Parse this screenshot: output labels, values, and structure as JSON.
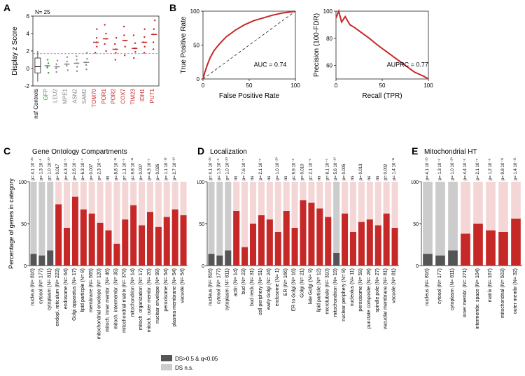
{
  "panelA": {
    "label": "A",
    "n_label": "N= 25",
    "y_label": "Display z Score",
    "y_lim": [
      -2,
      6
    ],
    "y_ticks": [
      -2,
      0,
      2,
      4,
      6
    ],
    "boxplot": {
      "x": 0,
      "q1": -0.5,
      "median": 0.2,
      "q3": 1.2,
      "whisker_low": -1.5,
      "whisker_high": 2.0
    },
    "series": [
      {
        "label": "nsf Controls",
        "color": "#000000",
        "type": "box"
      },
      {
        "label": "GFP",
        "color": "#3a9b3a",
        "median": 0.3,
        "points": [
          -0.5,
          0.1,
          0.3,
          0.6,
          1.0
        ]
      },
      {
        "label": "LEU2",
        "color": "#888888",
        "median": 0.2,
        "points": [
          -0.4,
          0.0,
          0.2,
          0.5,
          0.9
        ]
      },
      {
        "label": "MPE1",
        "color": "#888888",
        "median": 0.5,
        "points": [
          -0.2,
          0.3,
          0.5,
          0.8,
          1.3
        ]
      },
      {
        "label": "ASN2",
        "color": "#888888",
        "median": 0.6,
        "points": [
          -0.3,
          0.2,
          0.6,
          1.0,
          1.4
        ]
      },
      {
        "label": "SAM2",
        "color": "#888888",
        "median": 0.7,
        "points": [
          -0.1,
          0.4,
          0.7,
          1.1,
          1.8
        ]
      },
      {
        "label": "TOM70",
        "color": "#c62828",
        "median": 3.0,
        "points": [
          1.8,
          2.5,
          3.0,
          3.5,
          4.5
        ]
      },
      {
        "label": "POR1",
        "color": "#c62828",
        "median": 3.4,
        "points": [
          2.0,
          2.8,
          3.4,
          4.0,
          5.0
        ]
      },
      {
        "label": "POR2",
        "color": "#c62828",
        "median": 2.2,
        "points": [
          1.0,
          1.8,
          2.2,
          2.8,
          3.5
        ]
      },
      {
        "label": "COX7",
        "color": "#c62828",
        "median": 3.2,
        "points": [
          1.5,
          2.5,
          3.2,
          3.8,
          4.8
        ]
      },
      {
        "label": "TIM23",
        "color": "#c62828",
        "median": 2.3,
        "points": [
          1.2,
          1.9,
          2.3,
          2.9,
          3.8
        ]
      },
      {
        "label": "IDH1",
        "color": "#c62828",
        "median": 3.0,
        "points": [
          1.8,
          2.5,
          3.0,
          3.6,
          4.5
        ]
      },
      {
        "label": "PUT1",
        "color": "#c62828",
        "median": 3.9,
        "points": [
          2.2,
          3.0,
          3.9,
          4.5,
          5.5
        ]
      }
    ],
    "ref_line": 1.7
  },
  "panelB": {
    "label": "B",
    "roc": {
      "x_label": "False Positive Rate",
      "y_label": "True Positive Rate",
      "auc_text": "AUC = 0.74",
      "curve": [
        [
          0,
          0
        ],
        [
          2,
          10
        ],
        [
          5,
          22
        ],
        [
          8,
          32
        ],
        [
          12,
          42
        ],
        [
          18,
          52
        ],
        [
          25,
          62
        ],
        [
          35,
          72
        ],
        [
          45,
          80
        ],
        [
          55,
          86
        ],
        [
          65,
          90
        ],
        [
          75,
          94
        ],
        [
          85,
          97
        ],
        [
          95,
          99
        ],
        [
          100,
          100
        ]
      ],
      "color": "#c62828",
      "ticks": [
        0,
        50,
        100
      ]
    },
    "prc": {
      "x_label": "Recall (TPR)",
      "y_label": "Precision (100-FDR)",
      "auprc_text": "AUPRC = 0.77",
      "curve": [
        [
          0,
          95
        ],
        [
          3,
          100
        ],
        [
          6,
          92
        ],
        [
          10,
          96
        ],
        [
          15,
          90
        ],
        [
          20,
          88
        ],
        [
          28,
          84
        ],
        [
          36,
          80
        ],
        [
          45,
          75
        ],
        [
          55,
          70
        ],
        [
          65,
          65
        ],
        [
          75,
          60
        ],
        [
          85,
          55
        ],
        [
          95,
          52
        ],
        [
          100,
          50
        ]
      ],
      "color": "#c62828",
      "x_ticks": [
        0,
        50,
        100
      ],
      "y_ticks": [
        60,
        80,
        100
      ]
    }
  },
  "barCommon": {
    "y_label": "Percentage of genes in category",
    "y_ticks": [
      0,
      50,
      100
    ],
    "bar_color_sig": "#c62828",
    "bar_color_sig_top": "#f5d6d6",
    "bar_color_ns": "#555555",
    "bar_color_ns_top": "#cccccc",
    "legend": [
      {
        "label": "DS>0.5 & q<0.05",
        "color": "#555555"
      },
      {
        "label": "DS n.s.",
        "color": "#cccccc"
      }
    ]
  },
  "panelC": {
    "label": "C",
    "title": "Gene Ontology Compartments",
    "bars": [
      {
        "name": "nucleus (N= 816)",
        "val": 14,
        "pval": "p= 4.1 10⁻²⁵",
        "sig": false
      },
      {
        "name": "cytosol (N= 177)",
        "val": 12,
        "pval": "p= 1.3 10⁻⁸",
        "sig": false
      },
      {
        "name": "cytoplasm (N= 811)",
        "val": 18,
        "pval": "p= 1.0 10⁻²⁰",
        "sig": false
      },
      {
        "name": "endopl. reticulum (N= 223)",
        "val": 73,
        "pval": "p= 0.017",
        "sig": true
      },
      {
        "name": "endosome (N= 64)",
        "val": 45,
        "pval": "p= 4.3 10⁻⁵",
        "sig": true
      },
      {
        "name": "Golgi apparatus (N= 17)",
        "val": 82,
        "pval": "p= 2.6 10⁻⁷",
        "sig": true
      },
      {
        "name": "lipid particple (N= 8)",
        "val": 67,
        "pval": "p= 6.3 10⁻⁴",
        "sig": true
      },
      {
        "name": "membrane (N= 565)",
        "val": 62,
        "pval": "p= 0.007",
        "sig": true
      },
      {
        "name": "mitochondrial envelope (N= 120)",
        "val": 51,
        "pval": "p= 2.3 10⁻⁶",
        "sig": true
      },
      {
        "name": "mitoch. inner membr. (N= 46)",
        "val": 42,
        "pval": "ns",
        "sig": true
      },
      {
        "name": "mitoch. intermembr. (N= 35)",
        "val": 26,
        "pval": "p= 8.8 10⁻¹¹",
        "sig": true
      },
      {
        "name": "mitochondrial matrix (N= 379)",
        "val": 55,
        "pval": "p= 1.1 10⁻⁹",
        "sig": true
      },
      {
        "name": "mitochondrion (N= 14)",
        "val": 72,
        "pval": "p= 9.8 10⁻¹¹",
        "sig": true
      },
      {
        "name": "mitoch. organization (N= 17)",
        "val": 48,
        "pval": "p= 0.007",
        "sig": true
      },
      {
        "name": "mitoch. outer membr. (N= 20)",
        "val": 64,
        "pval": "p= 4.3 10⁻⁵",
        "sig": true
      },
      {
        "name": "nuclear envelope (N= 99)",
        "val": 46,
        "pval": "p= 0.026",
        "sig": true
      },
      {
        "name": "peroxisome (N= 54)",
        "val": 58,
        "pval": "p= 1.1 10⁻¹³",
        "sig": true
      },
      {
        "name": "plasma membrane (N= 54)",
        "val": 67,
        "pval": "p= 2.7 10⁻¹⁰",
        "sig": true
      },
      {
        "name": "vacuole (N= 54)",
        "val": 60,
        "pval": "",
        "sig": true
      }
    ]
  },
  "panelD": {
    "label": "D",
    "title": "Localization",
    "bars": [
      {
        "name": "nucleus (N= 816)",
        "val": 14,
        "pval": "p= 4.1 10⁻²⁵",
        "sig": false
      },
      {
        "name": "cytosol (N= 177)",
        "val": 12,
        "pval": "p= 1.3 10⁻⁸",
        "sig": false
      },
      {
        "name": "cytoplasm (N= 811)",
        "val": 18,
        "pval": "p= 1.0 10⁻²⁰",
        "sig": false
      },
      {
        "name": "actin (N= 14)",
        "val": 65,
        "pval": "ns",
        "sig": true
      },
      {
        "name": "bud (N= 23)",
        "val": 22,
        "pval": "p= 7.6 10⁻⁵",
        "sig": true
      },
      {
        "name": "bud neck (N= 31)",
        "val": 50,
        "pval": "ns",
        "sig": true
      },
      {
        "name": "cell periphery (N= 51)",
        "val": 60,
        "pval": "p= 2.1 10⁻⁵",
        "sig": true
      },
      {
        "name": "early Golgi (N= 24)",
        "val": 55,
        "pval": "ns",
        "sig": true
      },
      {
        "name": "endosome (N= 1)",
        "val": 40,
        "pval": "p= 1.0 10⁻²⁰",
        "sig": true
      },
      {
        "name": "ER (N= 166)",
        "val": 65,
        "pval": "ns",
        "sig": true
      },
      {
        "name": "ER to Golgi (N= 16)",
        "val": 45,
        "pval": "p= 9.9 10⁻⁸",
        "sig": true
      },
      {
        "name": "Golgi (N= 21)",
        "val": 78,
        "pval": "p= 0.010",
        "sig": true
      },
      {
        "name": "late Golgi (N= 9)",
        "val": 75,
        "pval": "p= 2.1 10⁻⁶",
        "sig": true
      },
      {
        "name": "lipid particle (N= 12)",
        "val": 68,
        "pval": "ns",
        "sig": true
      },
      {
        "name": "microtubule (N= 310)",
        "val": 58,
        "pval": "p= 8.1 10⁻⁵",
        "sig": true
      },
      {
        "name": "mitochondrion (N= 19)",
        "val": 15,
        "pval": "p= 5.6 10⁻¹⁰",
        "sig": false
      },
      {
        "name": "nuclear periphery (N= 8)",
        "val": 62,
        "pval": "p= 0.005",
        "sig": true
      },
      {
        "name": "nucleolus (N= 11)",
        "val": 40,
        "pval": "ns",
        "sig": true
      },
      {
        "name": "peroxisome (N= 59)",
        "val": 52,
        "pval": "p= 0.013",
        "sig": true
      },
      {
        "name": "punctate composite (N= 28)",
        "val": 55,
        "pval": "ns",
        "sig": true
      },
      {
        "name": "spindle pole (N= 27)",
        "val": 48,
        "pval": "ns",
        "sig": true
      },
      {
        "name": "vacuolar membrane (N= 81)",
        "val": 62,
        "pval": "p= 0.002",
        "sig": true
      },
      {
        "name": "vacuole (N= 81)",
        "val": 45,
        "pval": "p= 1.4 10⁻¹¹",
        "sig": true
      }
    ]
  },
  "panelE": {
    "label": "E",
    "title": "Mitochondrial HT",
    "bars": [
      {
        "name": "nucleus (N= 816)",
        "val": 14,
        "pval": "p= 4.1 10⁻²⁵",
        "sig": false
      },
      {
        "name": "cytosol (N= 177)",
        "val": 12,
        "pval": "p= 1.3 10⁻⁸",
        "sig": false
      },
      {
        "name": "cytoplasm (N= 811)",
        "val": 18,
        "pval": "p= 1.0 10⁻²⁰",
        "sig": false
      },
      {
        "name": "inner membr. (N= 271)",
        "val": 38,
        "pval": "p= 4.4 10⁻⁸",
        "sig": true
      },
      {
        "name": "intermembr. space (N= 104)",
        "val": 50,
        "pval": "p= 2.1 10⁻⁵",
        "sig": true
      },
      {
        "name": "matrix (N= 167)",
        "val": 42,
        "pval": "p= 1.2 10⁻⁸",
        "sig": true
      },
      {
        "name": "mitochondrial (N= 503)",
        "val": 40,
        "pval": "p= 9.8 10⁻¹¹",
        "sig": true
      },
      {
        "name": "outer membr (N= 32)",
        "val": 56,
        "pval": "p= 1.4 10⁻¹¹",
        "sig": true
      }
    ]
  }
}
